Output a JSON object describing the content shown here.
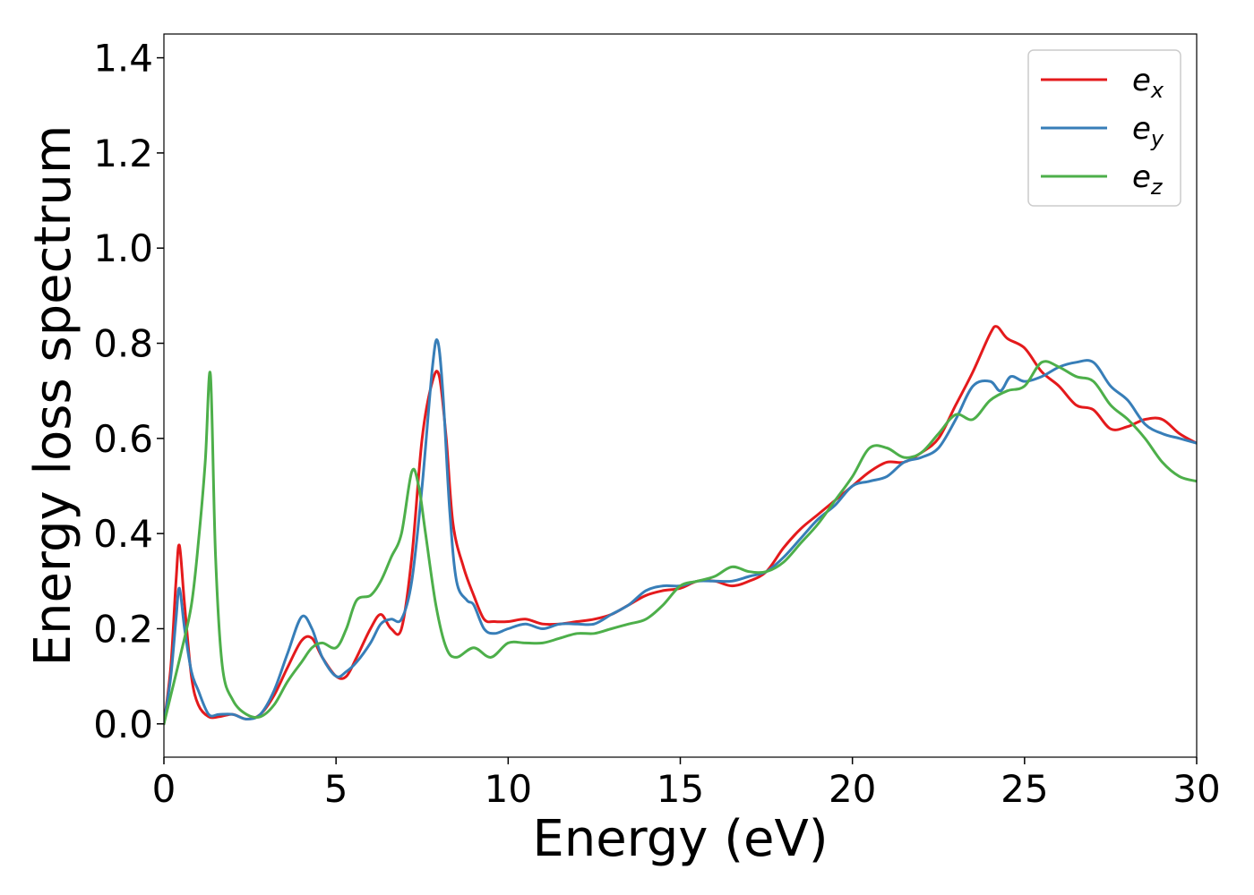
{
  "chart_data": {
    "type": "line",
    "title": "",
    "xlabel": "Energy (eV)",
    "ylabel": "Energy loss spectrum",
    "xlim": [
      0,
      30
    ],
    "ylim": [
      -0.07,
      1.45
    ],
    "xticks": [
      0,
      5,
      10,
      15,
      20,
      25,
      30
    ],
    "xtick_labels": [
      "0",
      "5",
      "10",
      "15",
      "20",
      "25",
      "30"
    ],
    "yticks": [
      0.0,
      0.2,
      0.4,
      0.6,
      0.8,
      1.0,
      1.2,
      1.4
    ],
    "ytick_labels": [
      "0.0",
      "0.2",
      "0.4",
      "0.6",
      "0.8",
      "1.0",
      "1.2",
      "1.4"
    ],
    "grid": false,
    "legend_position": "top-right",
    "series": [
      {
        "name": "e",
        "sub": "x",
        "color": "#e41a1c",
        "x": [
          0,
          0.2,
          0.35,
          0.45,
          0.6,
          0.8,
          1.0,
          1.3,
          1.6,
          2.0,
          2.4,
          2.8,
          3.2,
          3.6,
          4.0,
          4.3,
          4.6,
          5.0,
          5.3,
          5.6,
          6.0,
          6.3,
          6.6,
          6.9,
          7.2,
          7.5,
          7.8,
          8.0,
          8.2,
          8.4,
          8.7,
          9.0,
          9.3,
          9.6,
          10.0,
          10.5,
          11.0,
          11.5,
          12.0,
          12.5,
          13.0,
          13.5,
          14.0,
          14.5,
          15.0,
          15.5,
          16.0,
          16.5,
          17.0,
          17.5,
          18.0,
          18.5,
          19.0,
          19.5,
          20.0,
          20.5,
          21.0,
          21.5,
          22.0,
          22.5,
          23.0,
          23.5,
          24.0,
          24.2,
          24.5,
          25.0,
          25.5,
          26.0,
          26.5,
          27.0,
          27.5,
          28.0,
          28.5,
          29.0,
          29.5,
          30.0
        ],
        "y": [
          0.0,
          0.12,
          0.3,
          0.375,
          0.25,
          0.1,
          0.04,
          0.015,
          0.015,
          0.02,
          0.01,
          0.02,
          0.06,
          0.12,
          0.175,
          0.18,
          0.14,
          0.1,
          0.1,
          0.14,
          0.2,
          0.23,
          0.2,
          0.2,
          0.35,
          0.6,
          0.72,
          0.73,
          0.6,
          0.42,
          0.33,
          0.27,
          0.22,
          0.215,
          0.215,
          0.22,
          0.21,
          0.21,
          0.215,
          0.22,
          0.23,
          0.25,
          0.27,
          0.28,
          0.285,
          0.3,
          0.3,
          0.29,
          0.3,
          0.32,
          0.37,
          0.41,
          0.44,
          0.47,
          0.5,
          0.53,
          0.55,
          0.55,
          0.57,
          0.6,
          0.67,
          0.74,
          0.82,
          0.835,
          0.81,
          0.79,
          0.74,
          0.71,
          0.67,
          0.66,
          0.62,
          0.625,
          0.64,
          0.64,
          0.61,
          0.59
        ]
      },
      {
        "name": "e",
        "sub": "y",
        "color": "#377eb8",
        "x": [
          0,
          0.2,
          0.35,
          0.45,
          0.6,
          0.8,
          1.0,
          1.3,
          1.6,
          2.0,
          2.4,
          2.8,
          3.2,
          3.6,
          4.0,
          4.3,
          4.6,
          5.0,
          5.3,
          5.6,
          6.0,
          6.3,
          6.6,
          6.9,
          7.2,
          7.5,
          7.8,
          7.95,
          8.1,
          8.3,
          8.5,
          8.8,
          9.0,
          9.3,
          9.6,
          10.0,
          10.5,
          11.0,
          11.5,
          12.0,
          12.5,
          13.0,
          13.5,
          14.0,
          14.5,
          15.0,
          15.5,
          16.0,
          16.5,
          17.0,
          17.5,
          18.0,
          18.5,
          19.0,
          19.5,
          20.0,
          20.5,
          21.0,
          21.5,
          22.0,
          22.5,
          23.0,
          23.5,
          24.0,
          24.3,
          24.6,
          25.0,
          25.5,
          26.0,
          26.5,
          27.0,
          27.5,
          28.0,
          28.5,
          29.0,
          29.5,
          30.0
        ],
        "y": [
          0.0,
          0.1,
          0.22,
          0.285,
          0.2,
          0.11,
          0.07,
          0.02,
          0.02,
          0.02,
          0.01,
          0.02,
          0.07,
          0.15,
          0.225,
          0.2,
          0.14,
          0.1,
          0.11,
          0.13,
          0.17,
          0.21,
          0.22,
          0.22,
          0.3,
          0.5,
          0.75,
          0.805,
          0.7,
          0.45,
          0.3,
          0.26,
          0.25,
          0.2,
          0.19,
          0.2,
          0.21,
          0.2,
          0.21,
          0.21,
          0.21,
          0.23,
          0.25,
          0.28,
          0.29,
          0.29,
          0.3,
          0.3,
          0.3,
          0.31,
          0.32,
          0.35,
          0.39,
          0.43,
          0.46,
          0.5,
          0.51,
          0.52,
          0.55,
          0.56,
          0.58,
          0.64,
          0.71,
          0.72,
          0.7,
          0.73,
          0.72,
          0.73,
          0.75,
          0.76,
          0.76,
          0.71,
          0.68,
          0.63,
          0.61,
          0.6,
          0.59
        ]
      },
      {
        "name": "e",
        "sub": "z",
        "color": "#4daf4a",
        "x": [
          0,
          0.2,
          0.5,
          0.8,
          1.0,
          1.2,
          1.35,
          1.5,
          1.7,
          2.0,
          2.4,
          2.8,
          3.2,
          3.6,
          4.0,
          4.3,
          4.6,
          5.0,
          5.3,
          5.6,
          6.0,
          6.3,
          6.6,
          6.9,
          7.2,
          7.4,
          7.6,
          7.9,
          8.2,
          8.5,
          9.0,
          9.5,
          10.0,
          10.5,
          11.0,
          11.5,
          12.0,
          12.5,
          13.0,
          13.5,
          14.0,
          14.5,
          15.0,
          15.5,
          16.0,
          16.5,
          17.0,
          17.5,
          18.0,
          18.5,
          19.0,
          19.5,
          20.0,
          20.5,
          21.0,
          21.5,
          22.0,
          22.5,
          23.0,
          23.5,
          24.0,
          24.5,
          25.0,
          25.5,
          26.0,
          26.5,
          27.0,
          27.5,
          28.0,
          28.5,
          29.0,
          29.5,
          30.0
        ],
        "y": [
          0.0,
          0.06,
          0.15,
          0.25,
          0.38,
          0.55,
          0.735,
          0.35,
          0.12,
          0.05,
          0.02,
          0.015,
          0.04,
          0.09,
          0.13,
          0.16,
          0.17,
          0.16,
          0.2,
          0.26,
          0.27,
          0.3,
          0.35,
          0.4,
          0.53,
          0.5,
          0.4,
          0.25,
          0.16,
          0.14,
          0.16,
          0.14,
          0.17,
          0.17,
          0.17,
          0.18,
          0.19,
          0.19,
          0.2,
          0.21,
          0.22,
          0.25,
          0.29,
          0.3,
          0.31,
          0.33,
          0.32,
          0.32,
          0.34,
          0.38,
          0.42,
          0.47,
          0.52,
          0.58,
          0.58,
          0.56,
          0.57,
          0.61,
          0.65,
          0.64,
          0.68,
          0.7,
          0.71,
          0.76,
          0.75,
          0.73,
          0.72,
          0.67,
          0.64,
          0.6,
          0.55,
          0.52,
          0.51
        ]
      }
    ]
  }
}
